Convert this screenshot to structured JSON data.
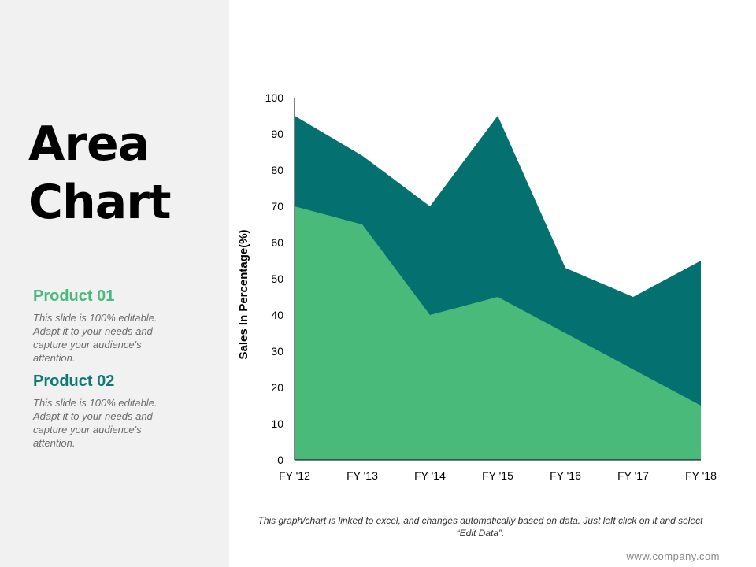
{
  "slide": {
    "title_line1": "Area",
    "title_line2": "Chart",
    "products": [
      {
        "heading": "Product 01",
        "description": "This slide is 100% editable. Adapt it to your needs and capture your audience's attention."
      },
      {
        "heading": "Product 02",
        "description": "This slide is 100% editable. Adapt it to your needs and capture your audience's attention."
      }
    ],
    "footnote": "This graph/chart is linked to excel, and changes automatically based on data. Just left click on it and select “Edit Data”.",
    "website": "www.company.com"
  },
  "chart_data": {
    "type": "area",
    "stacked": false,
    "categories": [
      "FY '12",
      "FY '13",
      "FY '14",
      "FY '15",
      "FY '16",
      "FY '17",
      "FY '18"
    ],
    "series": [
      {
        "key": "product_02",
        "values": [
          95,
          84,
          70,
          95,
          53,
          45,
          55
        ],
        "color": "#04706f"
      },
      {
        "key": "product_01",
        "values": [
          70,
          65,
          40,
          45,
          35,
          25,
          15
        ],
        "color": "#4aba7a"
      }
    ],
    "ylabel": "Sales In Percentage(%)",
    "ylim": [
      0,
      100
    ],
    "yticks": [
      0,
      10,
      20,
      30,
      40,
      50,
      60,
      70,
      80,
      90,
      100
    ],
    "grid": false,
    "legend": "none"
  }
}
